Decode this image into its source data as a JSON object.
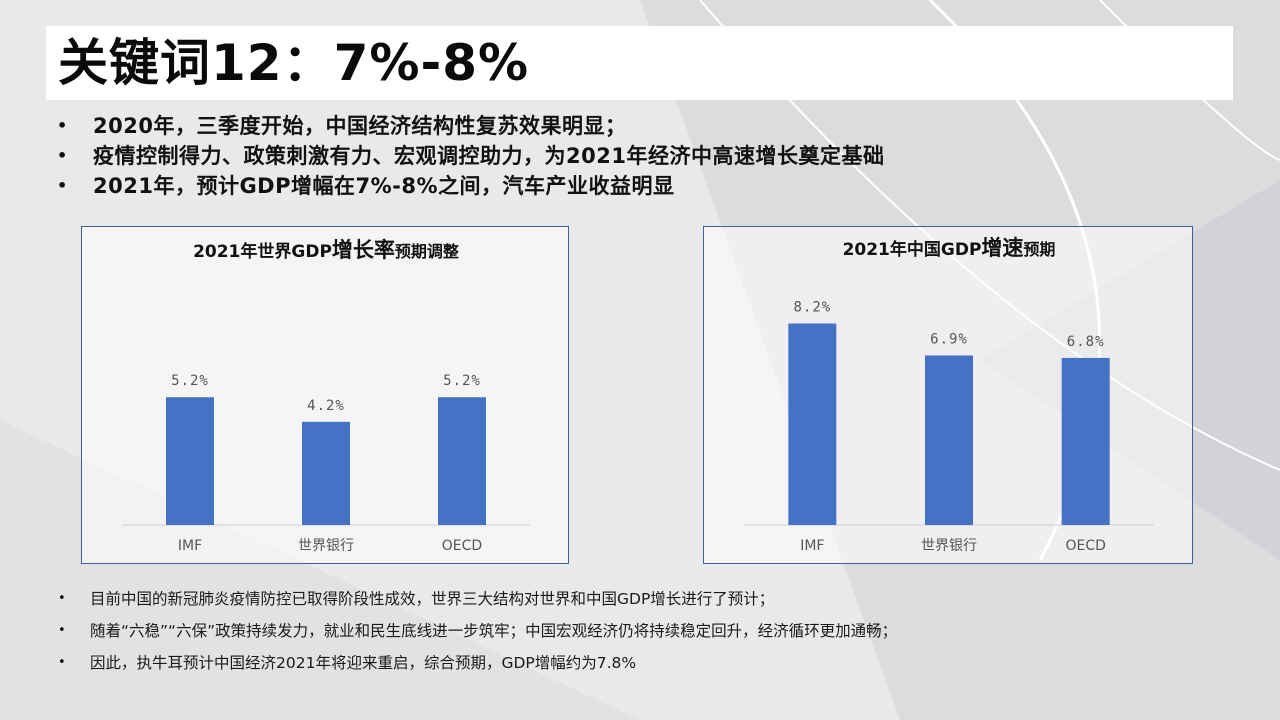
{
  "title": "关键词12：7%-8%",
  "top_bullets": [
    "2020年，三季度开始，中国经济结构性复苏效果明显；",
    "疫情控制得力、政策刺激有力、宏观调控助力，为2021年经济中高速增长奠定基础",
    "2021年，预计GDP增幅在7%-8%之间，汽车产业收益明显"
  ],
  "bottom_bullets": [
    "目前中国的新冠肺炎疫情防控已取得阶段性成效，世界三大结构对世界和中国GDP增长进行了预计；",
    "随着“六稳”“六保”政策持续发力，就业和民生底线进一步筑牢；中国宏观经济仍将持续稳定回升，经济循环更加通畅；",
    "因此，执牛耳预计中国经济2021年将迎来重启，综合预期，GDP增幅约为7.8%"
  ],
  "bullet_symbol": "•",
  "colors": {
    "bar": "#4472c4",
    "panel_border": "#3e5ea8"
  },
  "chart_data": [
    {
      "type": "bar",
      "title_plain": "2021年世界GDP",
      "title_big": "增长率",
      "title_small": "预期调整",
      "categories": [
        "IMF",
        "世界银行",
        "OECD"
      ],
      "values": [
        5.2,
        4.2,
        5.2
      ],
      "labels": [
        "5.2%",
        "4.2%",
        "5.2%"
      ],
      "ylim": [
        0,
        10.5
      ]
    },
    {
      "type": "bar",
      "title_plain": "2021年中国GDP",
      "title_big": "增速",
      "title_small": "预期",
      "categories": [
        "IMF",
        "世界银行",
        "OECD"
      ],
      "values": [
        8.2,
        6.9,
        6.8
      ],
      "labels": [
        "8.2%",
        "6.9%",
        "6.8%"
      ],
      "ylim": [
        0,
        10.5
      ]
    }
  ]
}
